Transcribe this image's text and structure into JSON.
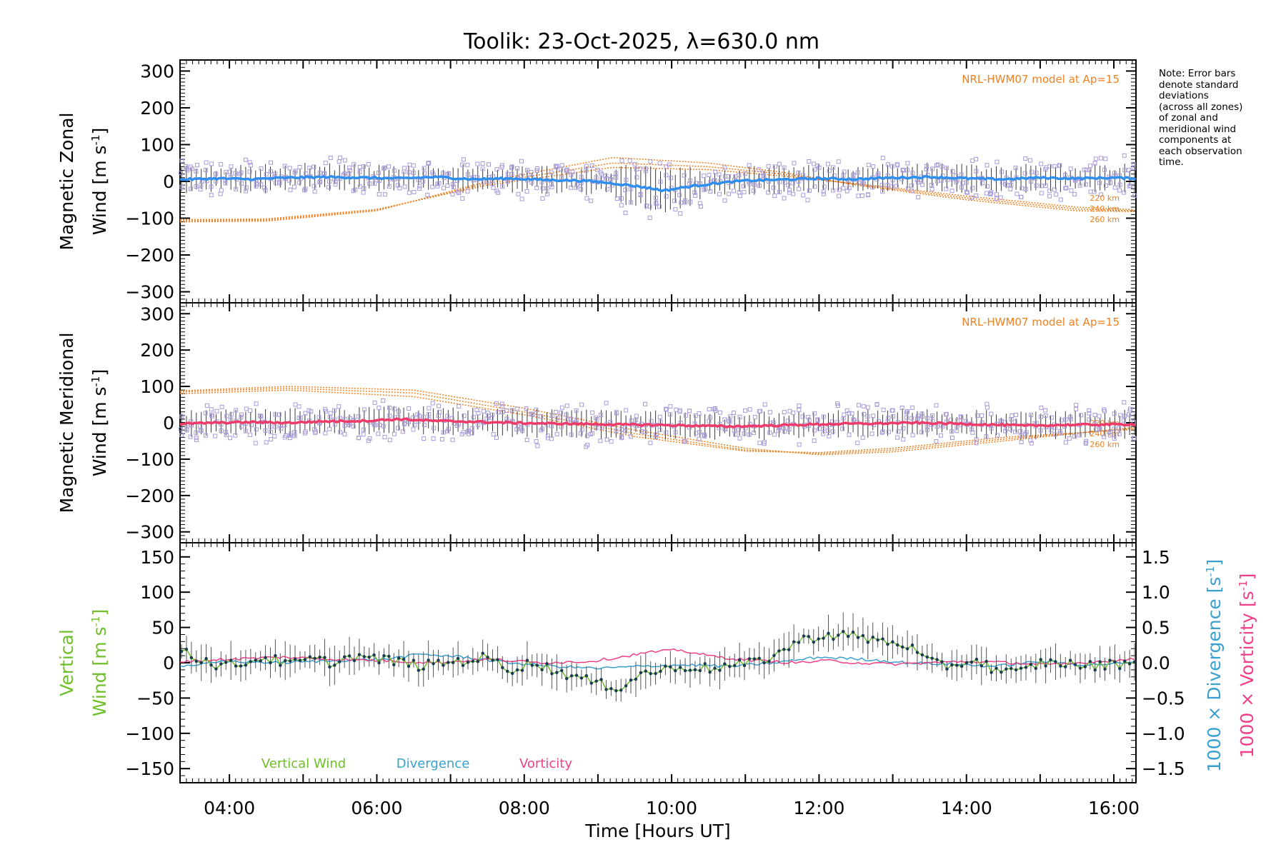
{
  "title": "Toolik: 23-Oct-2025, λ=630.0 nm",
  "note_lines": [
    "Note: Error bars",
    "denote standard",
    "deviations",
    "(across all zones)",
    "of zonal and",
    "meridional wind",
    "components at",
    "each observation",
    "time."
  ],
  "colors": {
    "model": "#f08020",
    "zonal": "#2f8ff0",
    "meridional": "#f03a6a",
    "vertical": "#6fbf2a",
    "divergence": "#3aa0d0",
    "vorticity": "#f0408a",
    "scatter": "#a99ad8",
    "points": "#1a3a50"
  },
  "chart_data": [
    {
      "type": "line",
      "panel": "zonal",
      "ylabel_line1": "Magnetic Zonal",
      "ylabel_line2": "Wind [m s",
      "ylabel_sup": "-1",
      "ylabel_close": "]",
      "ylim": [
        -330,
        330
      ],
      "yticks": [
        300,
        200,
        100,
        0,
        -100,
        -200,
        -300
      ],
      "xlim": [
        3.33,
        16.3
      ],
      "model_label": "NRL-HWM07 model at Ap=15",
      "model_alt_labels": [
        "220 km",
        "240 km",
        "260 km"
      ],
      "model_series": [
        {
          "name": "220 km",
          "x": [
            3.33,
            4.5,
            6,
            7.5,
            9.2,
            10.5,
            11.5,
            12.5,
            14,
            15.5,
            16.3
          ],
          "values": [
            -110,
            -108,
            -80,
            0,
            65,
            50,
            25,
            -10,
            -50,
            -80,
            -82
          ]
        },
        {
          "name": "240 km",
          "x": [
            3.33,
            4.5,
            6,
            7.5,
            9.2,
            10.5,
            11.5,
            12.5,
            14,
            15.5,
            16.3
          ],
          "values": [
            -107,
            -105,
            -78,
            -5,
            50,
            40,
            20,
            -8,
            -45,
            -75,
            -80
          ]
        },
        {
          "name": "260 km",
          "x": [
            3.33,
            4.5,
            6,
            7.5,
            9.2,
            10.5,
            11.5,
            12.5,
            14,
            15.5,
            16.3
          ],
          "values": [
            -104,
            -102,
            -76,
            -10,
            38,
            32,
            15,
            -6,
            -40,
            -70,
            -77
          ]
        }
      ],
      "series": [
        {
          "name": "Zonal mean wind",
          "x": [
            3.33,
            3.8,
            4.3,
            4.8,
            5.3,
            5.8,
            6.3,
            6.8,
            7.3,
            7.8,
            8.3,
            8.8,
            9.2,
            9.6,
            9.9,
            10.2,
            10.6,
            11.0,
            11.5,
            12.0,
            12.5,
            13.0,
            13.5,
            14.0,
            14.5,
            15.0,
            15.5,
            16.0,
            16.3
          ],
          "values": [
            5,
            8,
            6,
            10,
            12,
            10,
            8,
            12,
            6,
            8,
            4,
            2,
            -5,
            -15,
            -25,
            -15,
            -5,
            2,
            5,
            8,
            6,
            10,
            12,
            8,
            6,
            10,
            8,
            10,
            8
          ]
        }
      ]
    },
    {
      "type": "line",
      "panel": "meridional",
      "ylabel_line1": "Magnetic Meridional",
      "ylabel_line2": "Wind [m s",
      "ylabel_sup": "-1",
      "ylabel_close": "]",
      "ylim": [
        -330,
        330
      ],
      "yticks": [
        300,
        200,
        100,
        0,
        -100,
        -200,
        -300
      ],
      "xlim": [
        3.33,
        16.3
      ],
      "model_label": "NRL-HWM07 model at Ap=15",
      "model_alt_labels": [
        "220 km",
        "240 km",
        "260 km"
      ],
      "model_series": [
        {
          "name": "220 km",
          "x": [
            3.33,
            4.8,
            6.5,
            8,
            9.5,
            11,
            12,
            13,
            14.5,
            16.3
          ],
          "values": [
            88,
            100,
            90,
            40,
            -20,
            -70,
            -88,
            -80,
            -50,
            -12
          ]
        },
        {
          "name": "240 km",
          "x": [
            3.33,
            4.8,
            6.5,
            8,
            9.5,
            11,
            12,
            13,
            14.5,
            16.3
          ],
          "values": [
            85,
            95,
            82,
            30,
            -30,
            -75,
            -85,
            -75,
            -45,
            -15
          ]
        },
        {
          "name": "260 km",
          "x": [
            3.33,
            4.8,
            6.5,
            8,
            9.5,
            11,
            12,
            13,
            14.5,
            16.3
          ],
          "values": [
            80,
            90,
            72,
            22,
            -38,
            -78,
            -82,
            -70,
            -40,
            -18
          ]
        }
      ],
      "series": [
        {
          "name": "Meridional mean wind",
          "x": [
            3.33,
            3.8,
            4.3,
            4.8,
            5.3,
            5.8,
            6.3,
            6.8,
            7.3,
            7.8,
            8.3,
            8.8,
            9.3,
            9.8,
            10.3,
            10.8,
            11.3,
            11.8,
            12.3,
            12.8,
            13.3,
            13.8,
            14.3,
            14.8,
            15.3,
            15.8,
            16.3
          ],
          "values": [
            -3,
            0,
            2,
            0,
            4,
            5,
            10,
            5,
            3,
            0,
            -2,
            -3,
            -5,
            -6,
            -8,
            -10,
            -8,
            -5,
            -3,
            -2,
            0,
            -2,
            -5,
            -8,
            -6,
            -5,
            -4
          ]
        }
      ]
    },
    {
      "type": "line",
      "panel": "vertical",
      "ylabel_line1": "Vertical",
      "ylabel_line2": "Wind [m s",
      "ylabel_sup": "-1",
      "ylabel_close": "]",
      "ylim": [
        -170,
        170
      ],
      "yticks": [
        150,
        100,
        50,
        0,
        -50,
        -100,
        -150
      ],
      "y2lim": [
        -1.7,
        1.7
      ],
      "y2ticks": [
        1.5,
        1.0,
        0.5,
        0.0,
        -0.5,
        -1.0,
        -1.5
      ],
      "y2ticklabels": [
        "1.5",
        "1.0",
        "0.5",
        "0.0",
        "−0.5",
        "−1.0",
        "−1.5"
      ],
      "y2label_div": "1000 × Divergence [s",
      "y2label_vort": "1000 × Vorticity [s",
      "y2label_sup": "-1",
      "y2label_close": "]",
      "xlim": [
        3.33,
        16.3
      ],
      "xticks": [
        4,
        6,
        8,
        10,
        12,
        14,
        16
      ],
      "xticklabels": [
        "04:00",
        "06:00",
        "08:00",
        "10:00",
        "12:00",
        "14:00",
        "16:00"
      ],
      "xlabel": "Time [Hours UT]",
      "legend": [
        "Vertical Wind",
        "Divergence",
        "Vorticity"
      ],
      "series": [
        {
          "name": "Vertical Wind",
          "x": [
            3.33,
            3.6,
            3.9,
            4.2,
            4.5,
            4.8,
            5.1,
            5.4,
            5.7,
            6.0,
            6.3,
            6.6,
            6.9,
            7.2,
            7.5,
            7.8,
            8.1,
            8.4,
            8.7,
            9.0,
            9.3,
            9.6,
            9.9,
            10.2,
            10.5,
            10.8,
            11.1,
            11.4,
            11.7,
            12.0,
            12.3,
            12.6,
            12.9,
            13.2,
            13.5,
            13.8,
            14.1,
            14.4,
            14.7,
            15.0,
            15.3,
            15.6,
            15.9,
            16.2,
            16.3
          ],
          "values": [
            22,
            5,
            -5,
            0,
            8,
            -3,
            5,
            0,
            10,
            5,
            2,
            -5,
            0,
            3,
            8,
            -10,
            0,
            -10,
            -20,
            -30,
            -35,
            -15,
            -10,
            -5,
            -8,
            -5,
            0,
            10,
            30,
            38,
            40,
            35,
            30,
            25,
            0,
            -5,
            5,
            -10,
            -15,
            0,
            0,
            -5,
            -3,
            0,
            2
          ]
        },
        {
          "name": "Divergence",
          "x": [
            3.33,
            4.0,
            4.7,
            5.4,
            6.1,
            6.6,
            7.2,
            7.8,
            8.4,
            9.0,
            9.6,
            10.2,
            10.8,
            11.4,
            12.0,
            12.6,
            13.2,
            13.8,
            14.4,
            15.0,
            15.6,
            16.3
          ],
          "values": [
            -0.05,
            0.02,
            0.0,
            0.03,
            0.05,
            0.12,
            0.08,
            0.0,
            -0.05,
            -0.08,
            -0.05,
            -0.03,
            -0.05,
            0.0,
            0.08,
            0.05,
            0.0,
            -0.02,
            -0.05,
            0.02,
            -0.03,
            0.0
          ]
        },
        {
          "name": "Vorticity",
          "x": [
            3.33,
            4.0,
            4.7,
            5.4,
            6.1,
            6.8,
            7.5,
            8.2,
            8.9,
            9.3,
            9.7,
            10.1,
            10.5,
            10.9,
            11.3,
            11.7,
            12.1,
            12.5,
            13.0,
            13.5,
            14.0,
            14.6,
            15.2,
            15.8,
            16.3
          ],
          "values": [
            0.02,
            0.05,
            0.08,
            0.05,
            0.03,
            0.0,
            0.05,
            0.0,
            0.02,
            0.08,
            0.15,
            0.18,
            0.1,
            0.05,
            0.02,
            0.0,
            0.03,
            0.0,
            -0.02,
            0.0,
            0.02,
            0.0,
            -0.03,
            0.02,
            0.05
          ]
        }
      ]
    }
  ]
}
